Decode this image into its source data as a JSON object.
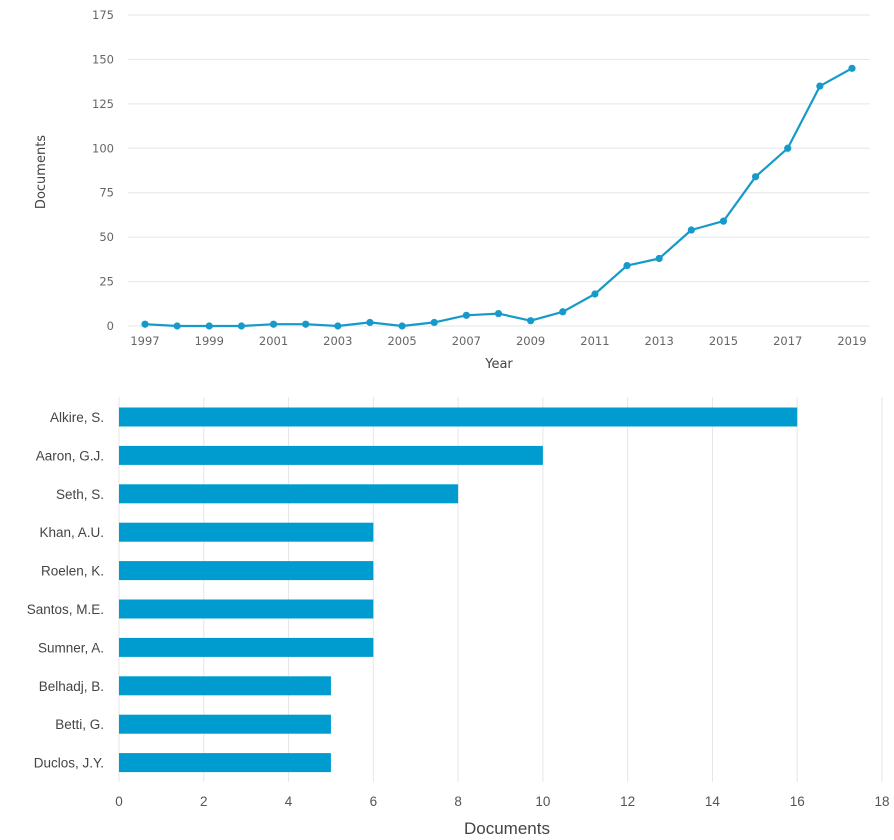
{
  "colors": {
    "series": "#169ac9",
    "bar": "#009ccf",
    "grid": "#e6e6e6",
    "text": "#444444"
  },
  "chart_data": [
    {
      "type": "line",
      "xlabel": "Year",
      "ylabel": "Documents",
      "x": [
        1997,
        1998,
        1999,
        2000,
        2001,
        2002,
        2003,
        2004,
        2005,
        2006,
        2007,
        2008,
        2009,
        2010,
        2011,
        2012,
        2013,
        2014,
        2015,
        2016,
        2017,
        2018,
        2019
      ],
      "series": [
        {
          "values": [
            1,
            0,
            0,
            0,
            1,
            1,
            0,
            2,
            0,
            2,
            6,
            7,
            3,
            8,
            18,
            34,
            38,
            54,
            59,
            84,
            100,
            135,
            145
          ]
        }
      ],
      "xticks": [
        "1997",
        "1999",
        "2001",
        "2003",
        "2005",
        "2007",
        "2009",
        "2011",
        "2013",
        "2015",
        "2017",
        "2019"
      ],
      "yticks": [
        "0",
        "25",
        "50",
        "75",
        "100",
        "125",
        "150",
        "175"
      ],
      "ylim": [
        0,
        175
      ],
      "grid": true
    },
    {
      "type": "bar",
      "orientation": "horizontal",
      "xlabel": "Documents",
      "categories": [
        "Alkire, S.",
        "Aaron, G.J.",
        "Seth, S.",
        "Khan, A.U.",
        "Roelen, K.",
        "Santos, M.E.",
        "Sumner, A.",
        "Belhadj, B.",
        "Betti, G.",
        "Duclos, J.Y."
      ],
      "values": [
        16,
        10,
        8,
        6,
        6,
        6,
        6,
        5,
        5,
        5
      ],
      "xticks": [
        "0",
        "2",
        "4",
        "6",
        "8",
        "10",
        "12",
        "14",
        "16",
        "18"
      ],
      "xlim": [
        0,
        18
      ],
      "grid": true
    }
  ]
}
